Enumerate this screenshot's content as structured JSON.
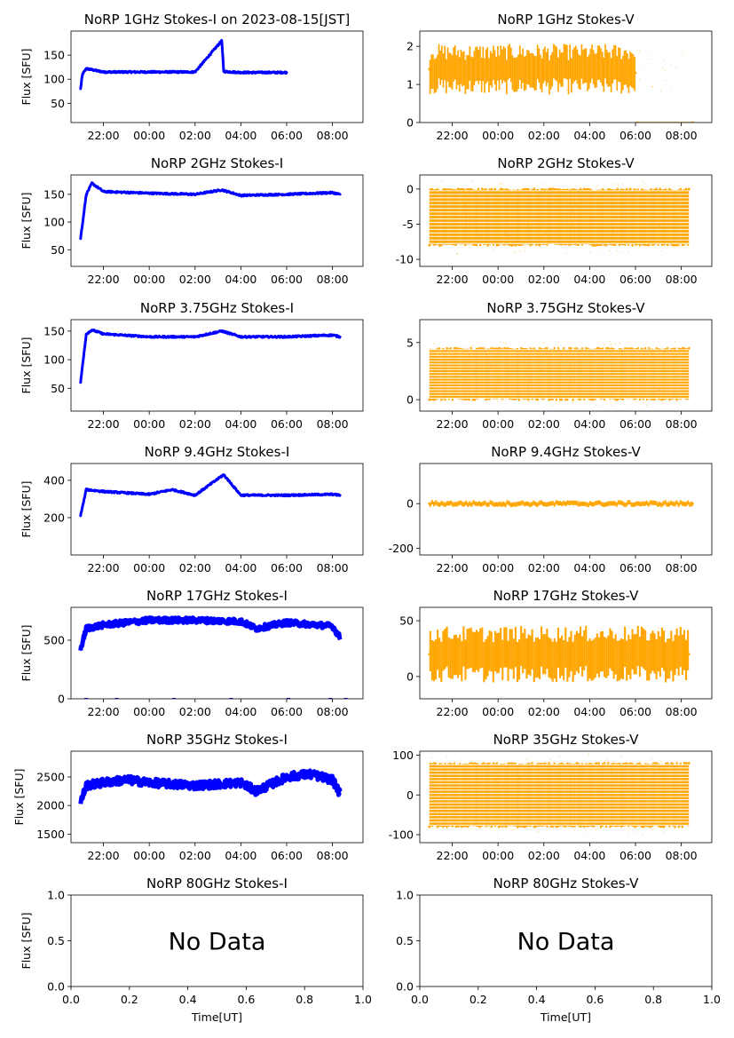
{
  "colors": {
    "stokes_i": "#0000ff",
    "stokes_v": "#ffa500",
    "axis": "#000000",
    "background": "#ffffff"
  },
  "x_axis": {
    "ticks": [
      "22:00",
      "00:00",
      "02:00",
      "04:00",
      "06:00",
      "08:00"
    ],
    "ylabel": "Flux [SFU]"
  },
  "chart_data": [
    {
      "type": "scatter",
      "title": "NoRP 1GHz Stokes-I on 2023-08-15[JST]",
      "ylabel": "Flux [SFU]",
      "x_range": [
        "20:35",
        "09:20"
      ],
      "ylim": [
        10,
        200
      ],
      "yticks": [
        50,
        100,
        150
      ],
      "series": [
        {
          "color": "#0000ff",
          "x": [
            "21:00",
            "21:05",
            "21:15",
            "22:00",
            "00:00",
            "02:00",
            "03:10",
            "03:15",
            "04:00",
            "06:00"
          ],
          "values": [
            80,
            110,
            122,
            115,
            115,
            115,
            180,
            116,
            114,
            114
          ]
        }
      ]
    },
    {
      "type": "scatter",
      "title": "NoRP 1GHz Stokes-V",
      "x_range": [
        "20:35",
        "09:20"
      ],
      "ylim": [
        0,
        2.4
      ],
      "yticks": [
        0,
        1,
        2
      ],
      "series": [
        {
          "color": "#ffa500",
          "x": [
            "21:00",
            "22:00",
            "00:00",
            "02:00",
            "04:00",
            "06:00",
            "06:05",
            "08:30"
          ],
          "values": [
            1.4,
            1.4,
            1.5,
            1.3,
            1.4,
            1.3,
            0,
            0
          ]
        }
      ]
    },
    {
      "type": "scatter",
      "title": "NoRP 2GHz Stokes-I",
      "ylabel": "Flux [SFU]",
      "x_range": [
        "20:35",
        "09:20"
      ],
      "ylim": [
        20,
        185
      ],
      "yticks": [
        50,
        100,
        150
      ],
      "series": [
        {
          "color": "#0000ff",
          "x": [
            "21:00",
            "21:15",
            "21:30",
            "22:00",
            "00:00",
            "02:00",
            "03:10",
            "04:00",
            "06:00",
            "08:00",
            "08:20"
          ],
          "values": [
            70,
            150,
            170,
            155,
            152,
            150,
            158,
            148,
            150,
            153,
            150
          ]
        }
      ]
    },
    {
      "type": "scatter",
      "title": "NoRP 2GHz Stokes-V",
      "x_range": [
        "20:35",
        "09:20"
      ],
      "ylim": [
        -11,
        2
      ],
      "yticks": [
        -10,
        -5,
        0
      ],
      "series": [
        {
          "color": "#ffa500",
          "x": [
            "21:00",
            "08:20"
          ],
          "values": [
            -8,
            0
          ]
        }
      ]
    },
    {
      "type": "scatter",
      "title": "NoRP 3.75GHz Stokes-I",
      "ylabel": "Flux [SFU]",
      "x_range": [
        "20:35",
        "09:20"
      ],
      "ylim": [
        10,
        170
      ],
      "yticks": [
        50,
        100,
        150
      ],
      "series": [
        {
          "color": "#0000ff",
          "x": [
            "21:00",
            "21:15",
            "21:30",
            "22:00",
            "00:00",
            "02:00",
            "03:10",
            "04:00",
            "06:00",
            "08:00",
            "08:20"
          ],
          "values": [
            60,
            145,
            152,
            145,
            140,
            140,
            150,
            140,
            140,
            143,
            140
          ]
        }
      ]
    },
    {
      "type": "scatter",
      "title": "NoRP 3.75GHz Stokes-V",
      "x_range": [
        "20:35",
        "09:20"
      ],
      "ylim": [
        -1,
        7
      ],
      "yticks": [
        0,
        5
      ],
      "series": [
        {
          "color": "#ffa500",
          "x": [
            "21:00",
            "08:20"
          ],
          "values": [
            0,
            4.5
          ]
        }
      ]
    },
    {
      "type": "scatter",
      "title": "NoRP 9.4GHz Stokes-I",
      "ylabel": "Flux [SFU]",
      "x_range": [
        "20:35",
        "09:20"
      ],
      "ylim": [
        0,
        490
      ],
      "yticks": [
        200,
        400
      ],
      "series": [
        {
          "color": "#0000ff",
          "x": [
            "21:00",
            "21:15",
            "22:00",
            "00:00",
            "01:00",
            "02:00",
            "03:15",
            "04:00",
            "06:00",
            "08:00",
            "08:20"
          ],
          "values": [
            210,
            350,
            340,
            325,
            350,
            320,
            430,
            320,
            320,
            325,
            320
          ]
        }
      ]
    },
    {
      "type": "scatter",
      "title": "NoRP 9.4GHz Stokes-V",
      "x_range": [
        "20:35",
        "09:20"
      ],
      "ylim": [
        -230,
        180
      ],
      "yticks": [
        -200,
        0
      ],
      "series": [
        {
          "color": "#ffa500",
          "x": [
            "21:00",
            "08:30"
          ],
          "values": [
            0,
            0
          ]
        }
      ]
    },
    {
      "type": "scatter",
      "title": "NoRP 17GHz Stokes-I",
      "ylabel": "Flux [SFU]",
      "x_range": [
        "20:35",
        "09:20"
      ],
      "ylim": [
        0,
        780
      ],
      "yticks": [
        0,
        500
      ],
      "series": [
        {
          "color": "#0000ff",
          "x": [
            "21:00",
            "21:15",
            "22:00",
            "00:00",
            "02:00",
            "04:00",
            "04:40",
            "06:00",
            "08:00",
            "08:20"
          ],
          "values": [
            420,
            600,
            630,
            670,
            670,
            660,
            600,
            650,
            620,
            520
          ]
        }
      ]
    },
    {
      "type": "scatter",
      "title": "NoRP 17GHz Stokes-V",
      "x_range": [
        "20:35",
        "09:20"
      ],
      "ylim": [
        -20,
        62
      ],
      "yticks": [
        0,
        50
      ],
      "series": [
        {
          "color": "#ffa500",
          "x": [
            "21:00",
            "08:20"
          ],
          "values": [
            20,
            20
          ]
        }
      ]
    },
    {
      "type": "scatter",
      "title": "NoRP 35GHz Stokes-I",
      "ylabel": "Flux [SFU]",
      "x_range": [
        "20:35",
        "09:20"
      ],
      "ylim": [
        1350,
        2950
      ],
      "yticks": [
        1500,
        2000,
        2500
      ],
      "series": [
        {
          "color": "#0000ff",
          "x": [
            "21:00",
            "21:15",
            "22:00",
            "23:00",
            "00:00",
            "02:00",
            "04:00",
            "04:40",
            "06:00",
            "07:00",
            "08:00",
            "08:20"
          ],
          "values": [
            2050,
            2350,
            2400,
            2450,
            2400,
            2350,
            2400,
            2250,
            2500,
            2550,
            2450,
            2200
          ]
        }
      ]
    },
    {
      "type": "scatter",
      "title": "NoRP 35GHz Stokes-V",
      "x_range": [
        "20:35",
        "09:20"
      ],
      "ylim": [
        -120,
        110
      ],
      "yticks": [
        -100,
        0,
        100
      ],
      "series": [
        {
          "color": "#ffa500",
          "x": [
            "21:00",
            "08:20"
          ],
          "values": [
            -80,
            80
          ]
        }
      ]
    },
    {
      "type": "scatter",
      "title": "NoRP 80GHz Stokes-I",
      "ylabel": "Flux [SFU]",
      "xlabel": "Time[UT]",
      "xlim": [
        0,
        1
      ],
      "ylim": [
        0,
        1
      ],
      "xticks": [
        "0.0",
        "0.2",
        "0.4",
        "0.6",
        "0.8",
        "1.0"
      ],
      "yticks": [
        "0.0",
        "0.5",
        "1.0"
      ],
      "annotation": "No Data",
      "series": []
    },
    {
      "type": "scatter",
      "title": "NoRP 80GHz Stokes-V",
      "xlabel": "Time[UT]",
      "xlim": [
        0,
        1
      ],
      "ylim": [
        0,
        1
      ],
      "xticks": [
        "0.0",
        "0.2",
        "0.4",
        "0.6",
        "0.8",
        "1.0"
      ],
      "yticks": [
        "0.0",
        "0.5",
        "1.0"
      ],
      "annotation": "No Data",
      "series": []
    }
  ]
}
